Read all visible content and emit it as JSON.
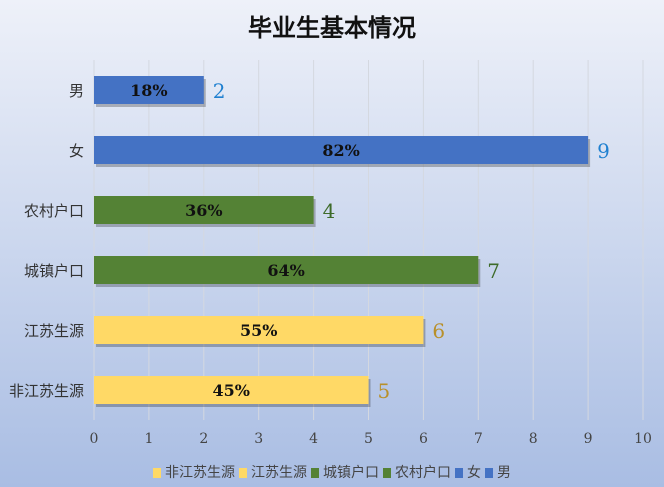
{
  "chart_data": {
    "type": "bar",
    "orientation": "horizontal",
    "title": "毕业生基本情况",
    "categories": [
      "男",
      "女",
      "农村户口",
      "城镇户口",
      "江苏生源",
      "非江苏生源"
    ],
    "values": [
      2,
      9,
      4,
      7,
      6,
      5
    ],
    "percent_labels": [
      "18%",
      "82%",
      "36%",
      "64%",
      "55%",
      "45%"
    ],
    "colors": [
      "#4472c4",
      "#4472c4",
      "#548235",
      "#548235",
      "#ffd966",
      "#ffd966"
    ],
    "value_label_colors": [
      "#1f80d0",
      "#1f80d0",
      "#3e6b2a",
      "#3e6b2a",
      "#b8902a",
      "#b8902a"
    ],
    "xlim": [
      0,
      10
    ],
    "xticks": [
      "0",
      "1",
      "2",
      "3",
      "4",
      "5",
      "6",
      "7",
      "8",
      "9",
      "10"
    ],
    "grid": true,
    "legend_position": "bottom",
    "legend": [
      "非江苏生源",
      "江苏生源",
      "城镇户口",
      "农村户口",
      "女",
      "男"
    ],
    "legend_colors": [
      "#ffd966",
      "#ffd966",
      "#548235",
      "#548235",
      "#4472c4",
      "#4472c4"
    ]
  }
}
